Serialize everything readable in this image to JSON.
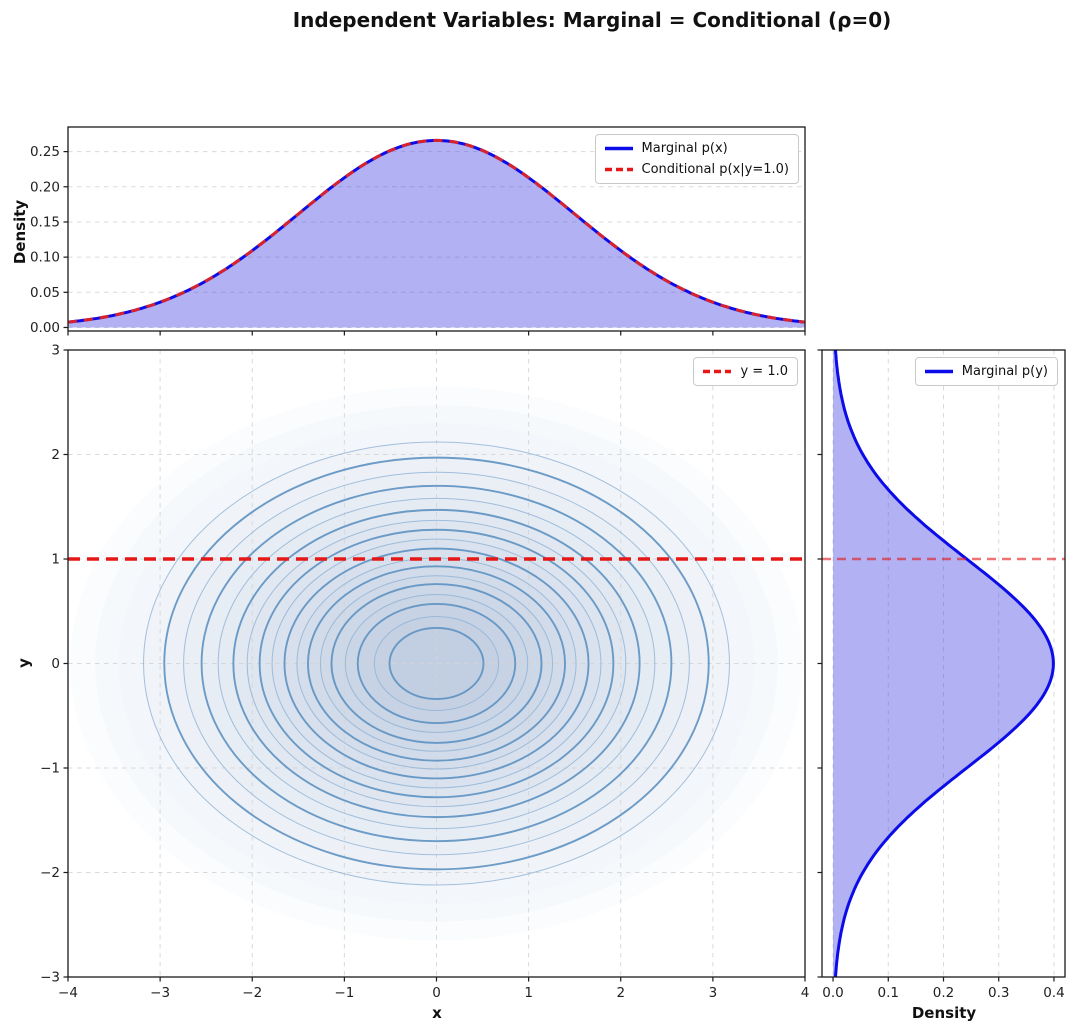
{
  "title": "Independent Variables: Marginal = Conditional (ρ=0)",
  "colors": {
    "marginal_line": "#0b0ce8",
    "conditional_line": "#d8232e",
    "reference_red": "#e51717",
    "curve_fill": "rgba(60,60,225,0.40)",
    "contour_major_line": "#5d91c1",
    "contour_minor_line": "#8fb2d4",
    "contour_fill_outer": "#fafcfe",
    "contour_fill_inner": "#c2cfe2",
    "grid": "#d4d4d4",
    "spine": "#1a1a1a"
  },
  "chart_data": [
    {
      "id": "top_marginal_x",
      "type": "area",
      "xlabel": "",
      "ylabel": "Density",
      "xlim": [
        -4,
        4
      ],
      "ylim": [
        -0.005,
        0.285
      ],
      "xticks": [
        -4,
        -3,
        -2,
        -1,
        0,
        1,
        2,
        3,
        4
      ],
      "yticks": [
        0.0,
        0.05,
        0.1,
        0.15,
        0.2,
        0.25
      ],
      "ytick_labels": [
        "0.00",
        "0.05",
        "0.10",
        "0.15",
        "0.20",
        "0.25"
      ],
      "grid": "y",
      "legend_position": "upper right",
      "legend": [
        {
          "label": "Marginal p(x)",
          "color": "#0b0ce8",
          "style": "solid"
        },
        {
          "label": "Conditional p(x|y=1.0)",
          "color": "#e51717",
          "style": "dashed"
        }
      ],
      "series": [
        {
          "name": "Marginal p(x)",
          "style": "solid",
          "color": "#0b0ce8",
          "line_width": 3,
          "fill": "rgba(60,60,225,0.40)",
          "distribution": {
            "type": "gaussian",
            "mu": 0,
            "sigma": 1.5,
            "peak": 0.266
          },
          "x": [
            -4,
            -3.5,
            -3,
            -2.5,
            -2,
            -1.5,
            -1,
            -0.5,
            0,
            0.5,
            1,
            1.5,
            2,
            2.5,
            3,
            3.5,
            4
          ],
          "y": [
            0.0076,
            0.0175,
            0.036,
            0.0663,
            0.1094,
            0.1613,
            0.213,
            0.2516,
            0.266,
            0.2516,
            0.213,
            0.1613,
            0.1094,
            0.0663,
            0.036,
            0.0175,
            0.0076
          ]
        },
        {
          "name": "Conditional p(x|y=1.0)",
          "style": "dashed",
          "color": "#d8232e",
          "line_width": 3,
          "distribution": {
            "type": "gaussian",
            "mu": 0,
            "sigma": 1.5,
            "peak": 0.266
          },
          "x": [
            -4,
            -3.5,
            -3,
            -2.5,
            -2,
            -1.5,
            -1,
            -0.5,
            0,
            0.5,
            1,
            1.5,
            2,
            2.5,
            3,
            3.5,
            4
          ],
          "y": [
            0.0076,
            0.0175,
            0.036,
            0.0663,
            0.1094,
            0.1613,
            0.213,
            0.2516,
            0.266,
            0.2516,
            0.213,
            0.1613,
            0.1094,
            0.0663,
            0.036,
            0.0175,
            0.0076
          ]
        }
      ]
    },
    {
      "id": "joint_contour",
      "type": "heatmap",
      "subtype": "bivariate_gaussian_contour",
      "xlabel": "x",
      "ylabel": "y",
      "xlim": [
        -4,
        4
      ],
      "ylim": [
        -3,
        3
      ],
      "xticks": [
        -4,
        -3,
        -2,
        -1,
        0,
        1,
        2,
        3,
        4
      ],
      "xtick_labels": [
        "−4",
        "−3",
        "−2",
        "−1",
        "0",
        "1",
        "2",
        "3",
        "4"
      ],
      "yticks": [
        -3,
        -2,
        -1,
        0,
        1,
        2,
        3
      ],
      "ytick_labels": [
        "−3",
        "−2",
        "−1",
        "0",
        "1",
        "2",
        "3"
      ],
      "grid": "both",
      "distribution": {
        "mu_x": 0,
        "mu_y": 0,
        "sigma_x": 1.5,
        "sigma_y": 1.0,
        "rho": 0,
        "peak_density": 0.106
      },
      "contour_radii_major": [
        0.34,
        0.57,
        0.76,
        0.93,
        1.1,
        1.28,
        1.47,
        1.7,
        1.97
      ],
      "contour_radii_minor": [
        0.45,
        0.66,
        0.84,
        1.01,
        1.19,
        1.37,
        1.58,
        1.83,
        2.12
      ],
      "fill_radii": [
        2.65,
        2.47,
        2.3,
        2.12,
        1.97,
        1.83,
        1.7,
        1.58,
        1.47,
        1.37,
        1.28,
        1.19,
        1.1,
        1.01,
        0.93,
        0.84,
        0.76,
        0.66,
        0.57,
        0.45,
        0.34
      ],
      "reference_line": {
        "label": "y = 1.0",
        "y": 1.0,
        "color": "#e51717",
        "style": "dashed",
        "line_width": 3.4
      },
      "legend_position": "upper right",
      "legend": [
        {
          "label": "y = 1.0",
          "color": "#e51717",
          "style": "dashed"
        }
      ]
    },
    {
      "id": "right_marginal_y",
      "type": "area",
      "orientation": "horizontal",
      "xlabel": "Density",
      "ylabel": "",
      "xlim": [
        -0.02,
        0.42
      ],
      "ylim": [
        -3,
        3
      ],
      "xticks": [
        0.0,
        0.1,
        0.2,
        0.3,
        0.4
      ],
      "xtick_labels": [
        "0.0",
        "0.1",
        "0.2",
        "0.3",
        "0.4"
      ],
      "yticks": [
        -3,
        -2,
        -1,
        0,
        1,
        2,
        3
      ],
      "grid": "x",
      "legend_position": "upper right",
      "legend": [
        {
          "label": "Marginal p(y)",
          "color": "#0b0ce8",
          "style": "solid"
        }
      ],
      "reference_line": {
        "y": 1.0,
        "color": "#e51717",
        "style": "dashed",
        "line_width": 2.6,
        "opacity": 0.6
      },
      "series": [
        {
          "name": "Marginal p(y)",
          "style": "solid",
          "color": "#0b0ce8",
          "line_width": 3,
          "fill": "rgba(60,60,225,0.40)",
          "distribution": {
            "type": "gaussian",
            "mu": 0,
            "sigma": 1.0,
            "peak": 0.399
          },
          "y": [
            -3,
            -2.5,
            -2,
            -1.5,
            -1,
            -0.5,
            0,
            0.5,
            1,
            1.5,
            2,
            2.5,
            3
          ],
          "density": [
            0.0044,
            0.0175,
            0.054,
            0.1295,
            0.242,
            0.3521,
            0.3989,
            0.3521,
            0.242,
            0.1295,
            0.054,
            0.0175,
            0.0044
          ]
        }
      ]
    }
  ]
}
